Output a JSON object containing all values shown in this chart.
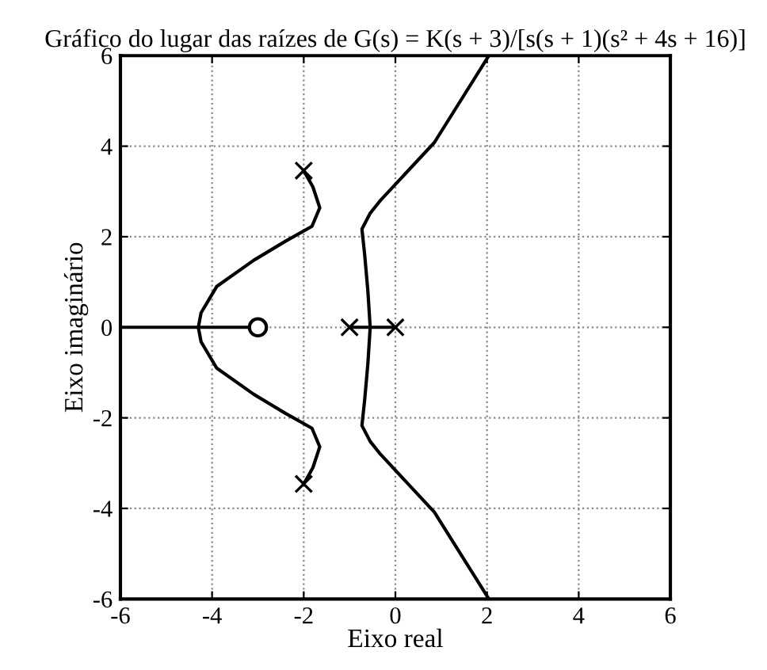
{
  "chart_data": {
    "type": "line",
    "title": "Gráfico do lugar das raízes de G(s) = K(s + 3)/[s(s + 1)(s² + 4s + 16)]",
    "xlabel": "Eixo real",
    "ylabel": "Eixo imaginário",
    "xlim": [
      -6,
      6
    ],
    "ylim": [
      -6,
      6
    ],
    "xticks": [
      -6,
      -4,
      -2,
      0,
      2,
      4,
      6
    ],
    "yticks": [
      -6,
      -4,
      -2,
      0,
      2,
      4,
      6
    ],
    "grid": true,
    "legend": false,
    "line_style": "solid",
    "series": [
      {
        "color": "#000000",
        "x": [
          -2.0,
          -1.8,
          -1.65,
          -1.82,
          -2.4,
          -3.09,
          -3.9,
          -4.24,
          -4.3,
          -4.24,
          -3.9,
          -3.09,
          -2.4,
          -1.82,
          -1.65,
          -1.8,
          -2.0
        ],
        "values": [
          3.46,
          3.1,
          2.64,
          2.23,
          1.9,
          1.48,
          0.9,
          0.32,
          0,
          -0.32,
          -0.9,
          -1.48,
          -1.9,
          -2.23,
          -2.64,
          -3.1,
          -3.46
        ]
      },
      {
        "color": "#000000",
        "x": [
          -6,
          -3
        ],
        "values": [
          0,
          0
        ]
      },
      {
        "color": "#000000",
        "x": [
          -1,
          0
        ],
        "values": [
          0,
          0
        ]
      },
      {
        "color": "#000000",
        "x": [
          2.04,
          0.85,
          -0.32,
          -0.55,
          -0.73,
          -0.67,
          -0.6,
          -0.55,
          -0.6,
          -0.67,
          -0.73,
          -0.55,
          -0.32,
          0.85,
          2.04
        ],
        "values": [
          6,
          4.08,
          2.81,
          2.52,
          2.17,
          1.6,
          0.8,
          0,
          -0.8,
          -1.6,
          -2.17,
          -2.52,
          -2.81,
          -4.08,
          -6
        ]
      },
      {
        "type": "scatter",
        "color": "#000000",
        "marker": "cross",
        "x": [
          0,
          -1,
          -2,
          -2
        ],
        "values": [
          0,
          0,
          3.46,
          -3.46
        ]
      },
      {
        "type": "scatter",
        "color": "#000000",
        "marker": "circle",
        "x": [
          -3
        ],
        "values": [
          0
        ]
      }
    ]
  }
}
